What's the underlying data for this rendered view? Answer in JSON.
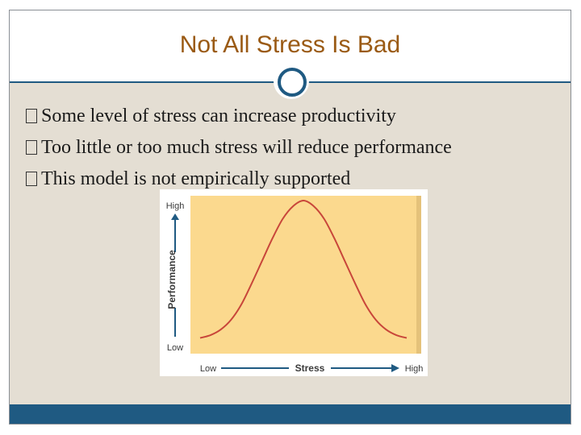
{
  "slide": {
    "title": "Not All Stress Is Bad",
    "bullets": [
      "Some level of stress can increase productivity",
      "Too little or too much stress will reduce performance",
      "This model is not empirically supported"
    ]
  },
  "colors": {
    "title": "#9a5a14",
    "accent": "#1f5a82",
    "content_bg": "#e4ded3",
    "chart_bg": "#fbd98e",
    "curve": "#c8463a",
    "axis": "#1f5a82"
  },
  "chart_data": {
    "type": "line",
    "xlabel": "Stress",
    "ylabel": "Performance",
    "x_tick_labels": [
      "Low",
      "High"
    ],
    "y_tick_labels": [
      "Low",
      "High"
    ],
    "x": [
      0,
      0.05,
      0.1,
      0.15,
      0.2,
      0.25,
      0.3,
      0.35,
      0.4,
      0.45,
      0.5,
      0.55,
      0.6,
      0.65,
      0.7,
      0.75,
      0.8,
      0.85,
      0.9,
      0.95,
      1
    ],
    "y": [
      0.02,
      0.04,
      0.08,
      0.15,
      0.26,
      0.41,
      0.57,
      0.73,
      0.87,
      0.96,
      1.0,
      0.96,
      0.87,
      0.73,
      0.57,
      0.41,
      0.26,
      0.15,
      0.08,
      0.04,
      0.02
    ],
    "xlim": [
      0,
      1
    ],
    "ylim": [
      0,
      1
    ],
    "grid": false,
    "legend": "none"
  }
}
